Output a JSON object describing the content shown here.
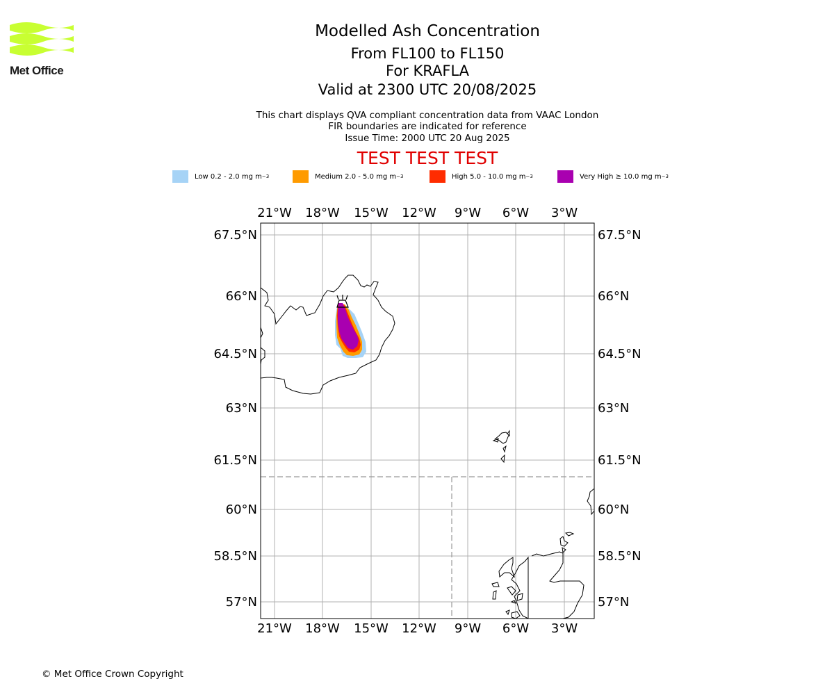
{
  "header": {
    "logo_text": "Met Office",
    "title": "Modelled Ash Concentration",
    "level_range": "From FL100 to FL150",
    "volcano": "For KRAFLA",
    "valid_time": "Valid at 2300 UTC 20/08/2025",
    "note_line1": "This chart displays QVA compliant concentration data from VAAC London",
    "note_line2": "FIR boundaries are indicated for reference",
    "issue_time": "Issue Time: 2000 UTC 20 Aug 2025",
    "test_banner": "TEST TEST TEST"
  },
  "legend": [
    {
      "label": "Low 0.2 - 2.0 mg m",
      "exponent": "−3",
      "color": "#a6d3f6"
    },
    {
      "label": "Medium 2.0 - 5.0 mg m",
      "exponent": "−3",
      "color": "#ff9b00"
    },
    {
      "label": "High 5.0 - 10.0 mg m",
      "exponent": "−3",
      "color": "#ff2c00"
    },
    {
      "label": "Very High  ≥  10.0 mg m",
      "exponent": "−3",
      "color": "#a900b0"
    }
  ],
  "map": {
    "lon_ticks": [
      "21°W",
      "18°W",
      "15°W",
      "12°W",
      "9°W",
      "6°W",
      "3°W"
    ],
    "lat_ticks": [
      "67.5°N",
      "66°N",
      "64.5°N",
      "63°N",
      "61.5°N",
      "60°N",
      "58.5°N",
      "57°N"
    ],
    "volcano_icon": "volcano-icon",
    "colors": {
      "grid": "#b0b0b0",
      "coast": "#000000",
      "fir": "#999999"
    }
  },
  "footer": {
    "copyright": "© Met Office Crown Copyright"
  }
}
